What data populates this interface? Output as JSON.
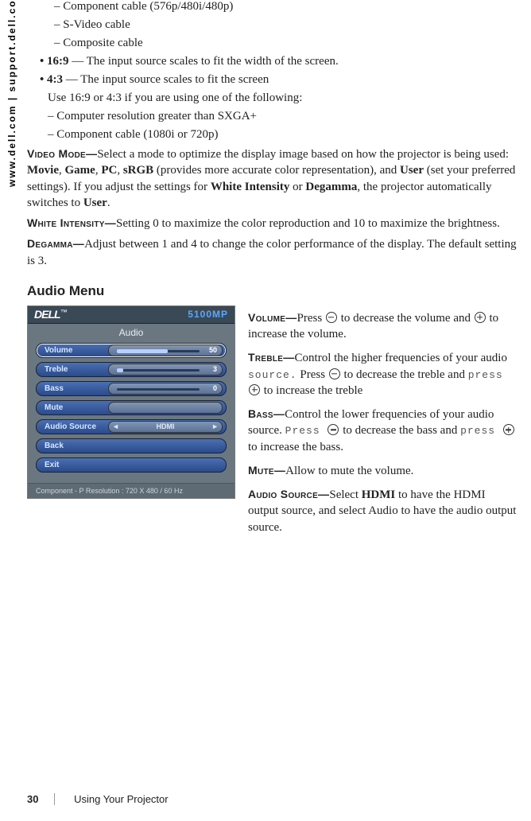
{
  "side_url": "www.dell.com | support.dell.com",
  "bullets_dash_top": [
    "Component cable (576p/480i/480p)",
    "S-Video cable",
    "Composite cable"
  ],
  "bullets_dot": [
    {
      "bold": "16:9",
      "rest": " — The input source scales to fit the width of the screen."
    },
    {
      "bold": "4:3",
      "rest": " — The input source scales to fit the screen"
    }
  ],
  "use_line": "Use 16:9 or 4:3 if you are using one of the following:",
  "bullets_dash_mid": [
    "Computer resolution greater than SXGA+",
    "Component cable (1080i or 720p)"
  ],
  "video_mode": {
    "label": "Video Mode—",
    "text1": "Select a mode to optimize the display image based on how the projector is being used: ",
    "b1": "Movie",
    "c1": ", ",
    "b2": "Game",
    "c2": ", ",
    "b3": "PC",
    "c3": ", ",
    "b4": "sRGB",
    "text2": " (provides more accurate color representation), and ",
    "b5": "User",
    "text3": " (set your preferred settings). If you adjust the settings for ",
    "b6": "White Intensity",
    "text_or": " or ",
    "b7": "Degamma",
    "text4": ", the projector automatically switches to ",
    "b8": "User",
    "text5": "."
  },
  "white_intensity": {
    "label": "White Intensity—",
    "text": "Setting 0 to maximize the color reproduction and 10 to maximize the brightness."
  },
  "degamma": {
    "label": "Degamma—",
    "text": "Adjust between 1 and 4 to change the color performance of the display. The default setting is 3."
  },
  "audio_heading": "Audio Menu",
  "osd": {
    "logo": "DELL",
    "tm": "™",
    "model": "5100MP",
    "title": "Audio",
    "items": [
      {
        "label": "Volume",
        "type": "slider",
        "value": "50",
        "fill_pct": 50
      },
      {
        "label": "Treble",
        "type": "slider",
        "value": "3",
        "fill_pct": 6
      },
      {
        "label": "Bass",
        "type": "slider",
        "value": "0",
        "fill_pct": 0
      },
      {
        "label": "Mute",
        "type": "blank"
      },
      {
        "label": "Audio Source",
        "type": "select",
        "value": "HDMI"
      },
      {
        "label": "Back",
        "type": "none"
      },
      {
        "label": "Exit",
        "type": "none"
      }
    ],
    "footer": "Component - P Resolution : 720 X 480 / 60 Hz"
  },
  "right": {
    "volume": {
      "label": "Volume—",
      "pre": "Press ",
      "mid": " to decrease the volume and ",
      "post": " to increase the volume."
    },
    "treble": {
      "label": "Treble—",
      "pre": "Control the higher frequencies of your audio ",
      "src": "source.",
      "p2": " Press ",
      "mid": " to decrease the treble and ",
      "press": "press ",
      "post": " to increase the treble"
    },
    "bass": {
      "label": "Bass—",
      "pre": "Control the lower frequencies of your audio source. ",
      "p1": "Press ",
      "mid": " to decrease the bass and ",
      "press": "press ",
      "post": " to increase the bass."
    },
    "mute": {
      "label": "Mute—",
      "text": "Allow to mute the volume."
    },
    "asource": {
      "label": "Audio Source—",
      "pre": "Select ",
      "b": "HDMI",
      "post": " to have the HDMI output source, and select Audio to have the audio output source."
    }
  },
  "footer": {
    "page": "30",
    "section": "Using Your Projector"
  }
}
